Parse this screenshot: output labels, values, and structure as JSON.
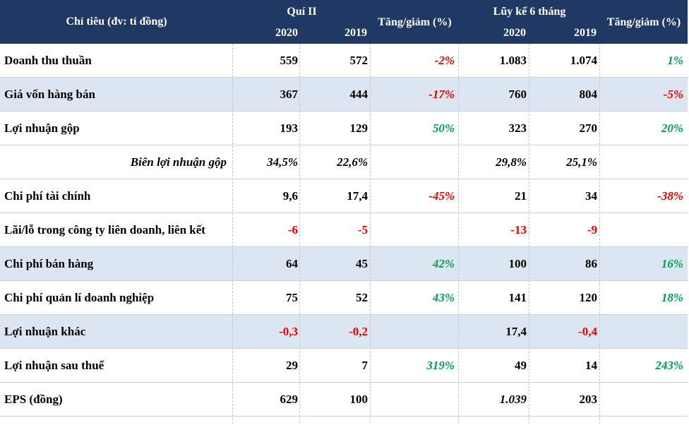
{
  "header": {
    "label": "Chỉ tiêu (đv: tỉ đồng)",
    "quarter_group": "Quí II",
    "ytd_group": "Lũy kế 6 tháng",
    "year_current": "2020",
    "year_previous": "2019",
    "change": "Tăng/giảm (%)"
  },
  "rows": [
    {
      "label": "Doanh thu thuần",
      "q2020": "559",
      "q2019": "572",
      "qchg": "-2%",
      "y2020": "1.083",
      "y2019": "1.074",
      "ychg": "1%"
    },
    {
      "label": "Giá vốn hàng bán",
      "q2020": "367",
      "q2019": "444",
      "qchg": "-17%",
      "y2020": "760",
      "y2019": "804",
      "ychg": "-5%"
    },
    {
      "label": "Lợi nhuận gộp",
      "q2020": "193",
      "q2019": "129",
      "qchg": "50%",
      "y2020": "323",
      "y2019": "270",
      "ychg": "20%"
    },
    {
      "label": "Biên lợi nhuận gộp",
      "q2020": "34,5%",
      "q2019": "22,6%",
      "qchg": "",
      "y2020": "29,8%",
      "y2019": "25,1%",
      "ychg": ""
    },
    {
      "label": "Chi phí tài chính",
      "q2020": "9,6",
      "q2019": "17,4",
      "qchg": "-45%",
      "y2020": "21",
      "y2019": "34",
      "ychg": "-38%"
    },
    {
      "label": "Lãi/lỗ trong công ty liên doanh, liên kết",
      "q2020": "-6",
      "q2019": "-5",
      "qchg": "",
      "y2020": "-13",
      "y2019": "-9",
      "ychg": ""
    },
    {
      "label": "Chi phí bán hàng",
      "q2020": "64",
      "q2019": "45",
      "qchg": "42%",
      "y2020": "100",
      "y2019": "86",
      "ychg": "16%"
    },
    {
      "label": "Chi phí quản lí doanh nghiệp",
      "q2020": "75",
      "q2019": "52",
      "qchg": "43%",
      "y2020": "141",
      "y2019": "120",
      "ychg": "18%"
    },
    {
      "label": "Lợi nhuận khác",
      "q2020": "-0,3",
      "q2019": "-0,2",
      "qchg": "",
      "y2020": "17,4",
      "y2019": "-0,4",
      "ychg": ""
    },
    {
      "label": "Lợi nhuận sau thuế",
      "q2020": "29",
      "q2019": "7",
      "qchg": "319%",
      "y2020": "49",
      "y2019": "14",
      "ychg": "243%"
    },
    {
      "label": "EPS (đồng)",
      "q2020": "629",
      "q2019": "100",
      "qchg": "",
      "y2020": "1.039",
      "y2019": "203",
      "ychg": ""
    }
  ],
  "colors": {
    "header_bg": "#1f3864",
    "row_shade": "#dce6f2",
    "negative": "#ee0000",
    "positive": "#00a050"
  }
}
